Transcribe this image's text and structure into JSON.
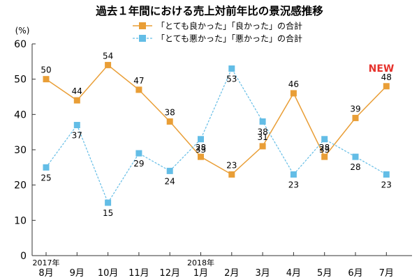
{
  "chart_data": {
    "type": "line",
    "title": "過去１年間における売上対前年比の景況感推移",
    "ylabel": "(%)",
    "ylim": [
      0,
      60
    ],
    "yticks": [
      0,
      10,
      20,
      30,
      40,
      50,
      60
    ],
    "categories": [
      "8月",
      "9月",
      "10月",
      "11月",
      "12月",
      "1月",
      "2月",
      "3月",
      "4月",
      "5月",
      "6月",
      "7月"
    ],
    "year_markers": [
      {
        "index": 0,
        "label": "2017年"
      },
      {
        "index": 5,
        "label": "2018年"
      }
    ],
    "series": [
      {
        "name": "「とても良かった」「良かった」の合計",
        "color": "#e99e36",
        "dashed": false,
        "label_position": "above",
        "values": [
          50,
          44,
          54,
          47,
          38,
          28,
          23,
          31,
          46,
          28,
          39,
          48
        ]
      },
      {
        "name": "「とても悪かった」「悪かった」の合計",
        "color": "#63bde6",
        "dashed": true,
        "label_position": "below",
        "values": [
          25,
          37,
          15,
          29,
          24,
          33,
          53,
          38,
          23,
          33,
          28,
          23
        ]
      }
    ],
    "badge": {
      "text": "NEW",
      "color": "#e6322c",
      "index": 11
    }
  }
}
